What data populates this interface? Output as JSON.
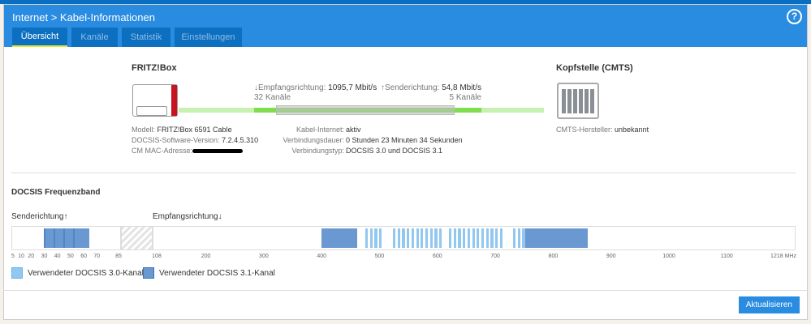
{
  "header": {
    "title": "Internet > Kabel-Informationen",
    "help": "?"
  },
  "tabs": [
    {
      "label": "Übersicht"
    },
    {
      "label": "Kanäle"
    },
    {
      "label": "Statistik"
    },
    {
      "label": "Einstellungen"
    }
  ],
  "overview": {
    "device_title": "FRITZ!Box",
    "cmts_title": "Kopfstelle (CMTS)",
    "down_label": "↓Empfangsrichtung:",
    "down_rate": "1095,7 Mbit/s",
    "down_channels": "32 Kanäle",
    "up_label": "↑Senderichtung:",
    "up_rate": "54,8 Mbit/s",
    "up_channels": "5 Kanäle",
    "model_label": "Modell:",
    "model": "FRITZ!Box 6591 Cable",
    "sw_label": "DOCSIS-Software-Version:",
    "sw": "7.2.4.5.310",
    "mac_label": "CM MAC-Adresse:",
    "cable_label": "Kabel-Internet:",
    "cable": "aktiv",
    "duration_label": "Verbindungsdauer:",
    "duration": "0 Stunden 23 Minuten 34 Sekunden",
    "type_label": "Verbindungstyp:",
    "type": "DOCSIS 3.0 und DOCSIS 3.1",
    "cmts_vendor_label": "CMTS-Hersteller:",
    "cmts_vendor": "unbekannt"
  },
  "band": {
    "title": "DOCSIS Frequenzband",
    "up_title": "Senderichtung↑",
    "down_title": "Empfangsrichtung↓",
    "up_ticks": [
      "5",
      "10",
      "20",
      "30",
      "40",
      "50",
      "60",
      "70",
      "85"
    ],
    "down_ticks": [
      "108",
      "200",
      "300",
      "400",
      "500",
      "600",
      "700",
      "800",
      "900",
      "1000",
      "1100",
      "1218 MHz"
    ],
    "legend30": "Verwendeter DOCSIS 3.0-Kanal",
    "legend31": "Verwendeter DOCSIS 3.1-Kanal",
    "color30": "#92c8f0",
    "color31": "#6a98d0"
  },
  "button": "Aktualisieren"
}
